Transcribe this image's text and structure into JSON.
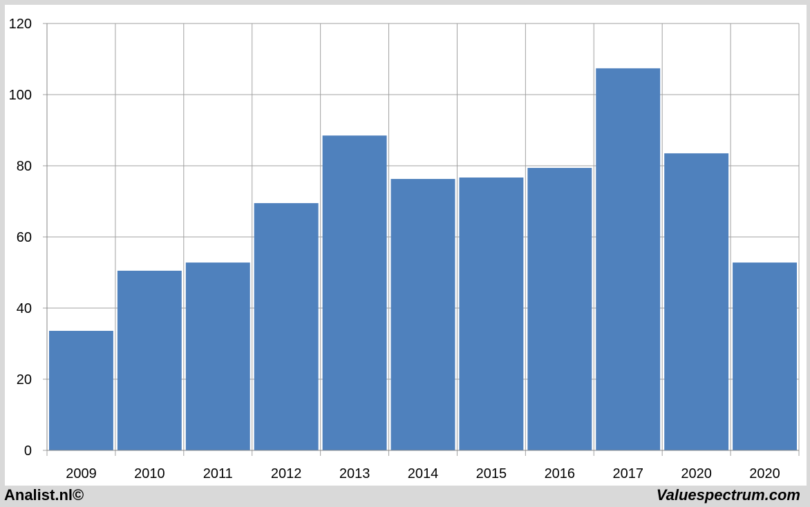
{
  "chart_data": {
    "type": "bar",
    "categories": [
      "2009",
      "2010",
      "2011",
      "2012",
      "2013",
      "2014",
      "2015",
      "2016",
      "2017",
      "2020",
      "2020"
    ],
    "values": [
      33.6,
      50.5,
      52.8,
      69.5,
      88.5,
      76.3,
      76.7,
      79.4,
      107.4,
      83.5,
      52.8
    ],
    "ylim": [
      0,
      120
    ],
    "yticks": [
      0,
      20,
      40,
      60,
      80,
      100,
      120
    ],
    "grid": true,
    "bar_color": "#4f81bd",
    "title": "",
    "xlabel": "",
    "ylabel": ""
  },
  "footer": {
    "left": "Analist.nl©",
    "right": "Valuespectrum.com"
  }
}
